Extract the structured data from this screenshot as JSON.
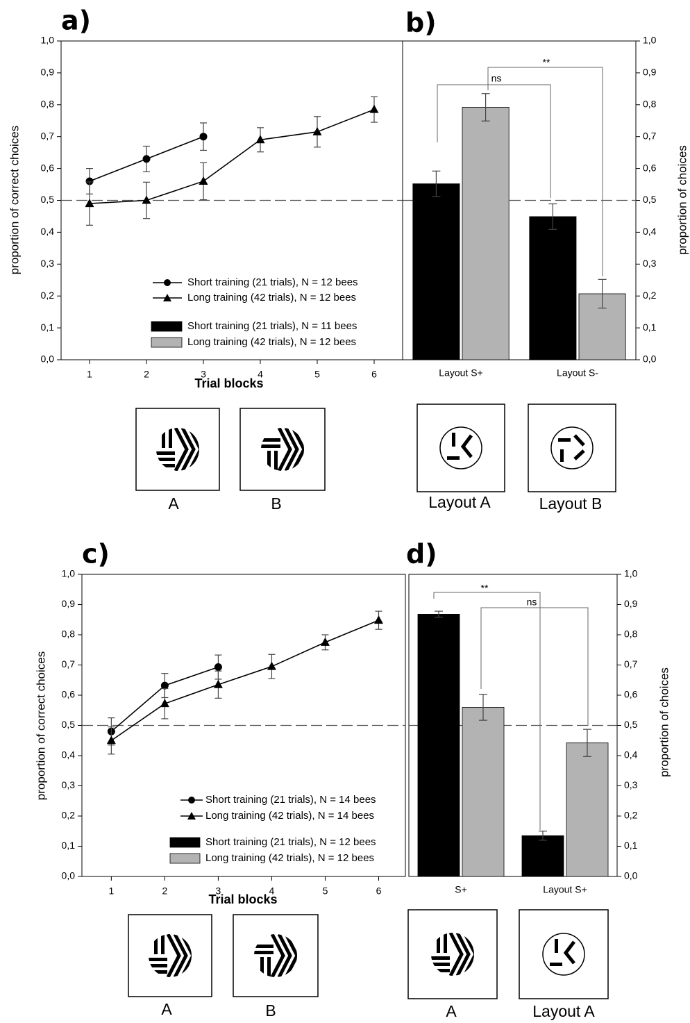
{
  "chart_data": [
    {
      "type": "line",
      "title": "a)",
      "xlabel": "Trial blocks",
      "ylabel": "proportion of correct choices",
      "x": [
        1,
        2,
        3,
        4,
        5,
        6
      ],
      "xlim": [
        0.5,
        6.5
      ],
      "xticks": [
        1,
        2,
        3,
        4,
        5,
        6
      ],
      "ylim": [
        0,
        1
      ],
      "yticks": [
        {
          "value": 0,
          "label": "0,0"
        },
        {
          "value": 0.1,
          "label": "0,1"
        },
        {
          "value": 0.2,
          "label": "0,2"
        },
        {
          "value": 0.3,
          "label": "0,3"
        },
        {
          "value": 0.4,
          "label": "0,4"
        },
        {
          "value": 0.5,
          "label": "0,5"
        },
        {
          "value": 0.6,
          "label": "0,6"
        },
        {
          "value": 0.7,
          "label": "0,7"
        },
        {
          "value": 0.8,
          "label": "0,8"
        },
        {
          "value": 0.9,
          "label": "0,9"
        },
        {
          "value": 1,
          "label": "1,0"
        }
      ],
      "hline": 0.5,
      "series": [
        {
          "name": "Short training (21 trials), N = 12 bees",
          "color": "#000000",
          "marker": "circle",
          "values": [
            0.56,
            0.63,
            0.7,
            null,
            null,
            null
          ],
          "errors": [
            0.04,
            0.04,
            0.043,
            null,
            null,
            null
          ]
        },
        {
          "name": "Long training (42 trials), N = 12 bees",
          "color": "#000000",
          "marker": "triangle",
          "values": [
            0.49,
            0.5,
            0.56,
            0.69,
            0.715,
            0.785
          ],
          "errors": [
            0.068,
            0.057,
            0.058,
            0.038,
            0.048,
            0.04
          ]
        }
      ],
      "stimuli": [
        "A",
        "B"
      ]
    },
    {
      "type": "bar",
      "title": "b)",
      "ylabel": "proportion of choices",
      "y_axis": "right",
      "categories": [
        "Layout S+",
        "Layout S-"
      ],
      "ylim": [
        0,
        1
      ],
      "yticks": [
        {
          "value": 0,
          "label": "0,0"
        },
        {
          "value": 0.1,
          "label": "0,1"
        },
        {
          "value": 0.2,
          "label": "0,2"
        },
        {
          "value": 0.3,
          "label": "0,3"
        },
        {
          "value": 0.4,
          "label": "0,4"
        },
        {
          "value": 0.5,
          "label": "0,5"
        },
        {
          "value": 0.6,
          "label": "0,6"
        },
        {
          "value": 0.7,
          "label": "0,7"
        },
        {
          "value": 0.8,
          "label": "0,8"
        },
        {
          "value": 0.9,
          "label": "0,9"
        },
        {
          "value": 1,
          "label": "1,0"
        }
      ],
      "hline": 0.5,
      "series": [
        {
          "name": "Short training (21 trials), N = 11 bees",
          "color": "#000000",
          "values": [
            0.552,
            0.449
          ],
          "errors": [
            0.04,
            0.04
          ]
        },
        {
          "name": "Long training (42 trials), N = 12 bees",
          "color": "#b3b3b3",
          "values": [
            0.792,
            0.207
          ],
          "errors": [
            0.043,
            0.045
          ]
        }
      ],
      "annotations": [
        "ns",
        "**"
      ],
      "stimuli": [
        "Layout A",
        "Layout B"
      ]
    },
    {
      "type": "line",
      "title": "c)",
      "xlabel": "Trial blocks",
      "ylabel": "proportion of correct choices",
      "x": [
        1,
        2,
        3,
        4,
        5,
        6
      ],
      "xlim": [
        0.45,
        6.5
      ],
      "xticks": [
        1,
        2,
        3,
        4,
        5,
        6
      ],
      "ylim": [
        0,
        1
      ],
      "yticks": [
        {
          "value": 0,
          "label": "0,0"
        },
        {
          "value": 0.1,
          "label": "0,1"
        },
        {
          "value": 0.2,
          "label": "0,2"
        },
        {
          "value": 0.3,
          "label": "0,3"
        },
        {
          "value": 0.4,
          "label": "0,4"
        },
        {
          "value": 0.5,
          "label": "0,5"
        },
        {
          "value": 0.6,
          "label": "0,6"
        },
        {
          "value": 0.7,
          "label": "0,7"
        },
        {
          "value": 0.8,
          "label": "0,8"
        },
        {
          "value": 0.9,
          "label": "0,9"
        },
        {
          "value": 1,
          "label": "1,0"
        }
      ],
      "hline": 0.5,
      "series": [
        {
          "name": "Short training (21 trials), N = 14 bees",
          "color": "#000000",
          "marker": "circle",
          "values": [
            0.48,
            0.632,
            0.693,
            null,
            null,
            null
          ],
          "errors": [
            0.045,
            0.04,
            0.04,
            null,
            null,
            null
          ]
        },
        {
          "name": "Long training (42 trials), N = 14 bees",
          "color": "#000000",
          "marker": "triangle",
          "values": [
            0.45,
            0.572,
            0.635,
            0.695,
            0.775,
            0.848
          ],
          "errors": [
            0.045,
            0.05,
            0.045,
            0.04,
            0.025,
            0.03
          ]
        }
      ],
      "stimuli": [
        "A",
        "B"
      ]
    },
    {
      "type": "bar",
      "title": "d)",
      "ylabel": "proportion of choices",
      "y_axis": "right",
      "categories": [
        "S+",
        "Layout S+"
      ],
      "ylim": [
        0,
        1
      ],
      "yticks": [
        {
          "value": 0,
          "label": "0,0"
        },
        {
          "value": 0.1,
          "label": "0,1"
        },
        {
          "value": 0.2,
          "label": "0,2"
        },
        {
          "value": 0.3,
          "label": "0,3"
        },
        {
          "value": 0.4,
          "label": "0,4"
        },
        {
          "value": 0.5,
          "label": "0,5"
        },
        {
          "value": 0.6,
          "label": "0,6"
        },
        {
          "value": 0.7,
          "label": "0,7"
        },
        {
          "value": 0.8,
          "label": "0,8"
        },
        {
          "value": 0.9,
          "label": "0,9"
        },
        {
          "value": 1,
          "label": "1,0"
        }
      ],
      "hline": 0.5,
      "series": [
        {
          "name": "Short training (21 trials), N = 12 bees",
          "color": "#000000",
          "values": [
            0.868,
            0.135
          ],
          "errors": [
            0.01,
            0.015
          ]
        },
        {
          "name": "Long training (42 trials), N = 12 bees",
          "color": "#b3b3b3",
          "values": [
            0.56,
            0.442
          ],
          "errors": [
            0.043,
            0.045
          ]
        }
      ],
      "annotations": [
        "**",
        "ns"
      ],
      "stimuli": [
        "A",
        "Layout A"
      ]
    }
  ]
}
